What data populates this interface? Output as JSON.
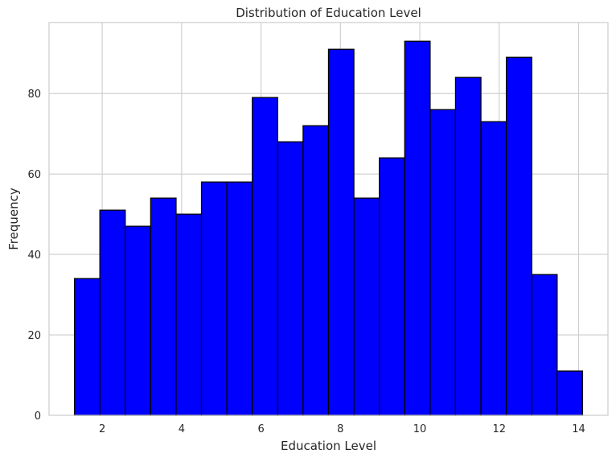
{
  "chart_data": {
    "type": "bar",
    "title": "Distribution of Education Level",
    "xlabel": "Education Level",
    "ylabel": "Frequency",
    "bin_edges": [
      1.3,
      1.94,
      2.58,
      3.22,
      3.86,
      4.5,
      5.14,
      5.78,
      6.42,
      7.06,
      7.7,
      8.34,
      8.98,
      9.62,
      10.26,
      10.9,
      11.54,
      12.18,
      12.82,
      13.46,
      14.1
    ],
    "values": [
      34,
      51,
      47,
      54,
      50,
      58,
      58,
      79,
      68,
      72,
      91,
      54,
      64,
      93,
      76,
      84,
      73,
      89,
      35,
      11
    ],
    "xlim": [
      0.66,
      14.74
    ],
    "ylim": [
      0,
      97.65
    ],
    "xticks": [
      2,
      4,
      6,
      8,
      10,
      12,
      14
    ],
    "yticks": [
      0,
      20,
      40,
      60,
      80
    ],
    "bar_color": "#0000ff",
    "edge_color": "#000000",
    "grid": true
  }
}
